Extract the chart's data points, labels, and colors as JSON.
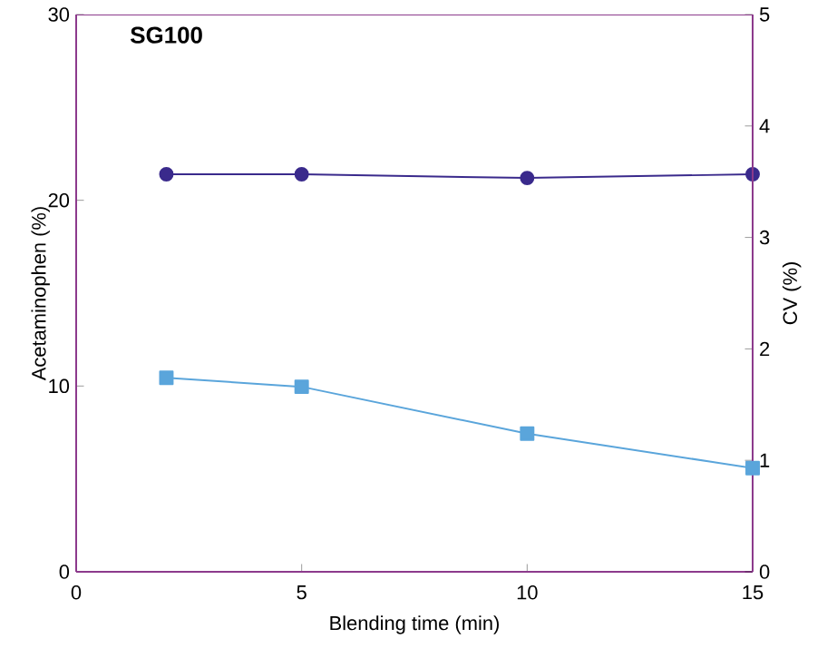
{
  "chart_data": {
    "type": "line",
    "title": "SG100",
    "xlabel": "Blending time (min)",
    "ylabel": "Acetaminophen (%)",
    "y2label": "CV (%)",
    "x": [
      2,
      5,
      10,
      15
    ],
    "series": [
      {
        "color": "#3a2a8c",
        "values": [
          21.4,
          21.4,
          21.2,
          21.4
        ],
        "marker": "circle"
      },
      {
        "color": "#5aa5db",
        "values": [
          1.74,
          1.66,
          1.24,
          0.93
        ],
        "marker": "square",
        "axis": "y2"
      }
    ],
    "xlim": [
      0,
      15
    ],
    "xticks": [
      0,
      5,
      10,
      15
    ],
    "ylim": [
      0,
      30
    ],
    "yticks": [
      0,
      10,
      20,
      30
    ],
    "y2lim": [
      0,
      5
    ],
    "y2ticks": [
      0,
      1,
      2,
      3,
      4,
      5
    ],
    "grid": false
  }
}
